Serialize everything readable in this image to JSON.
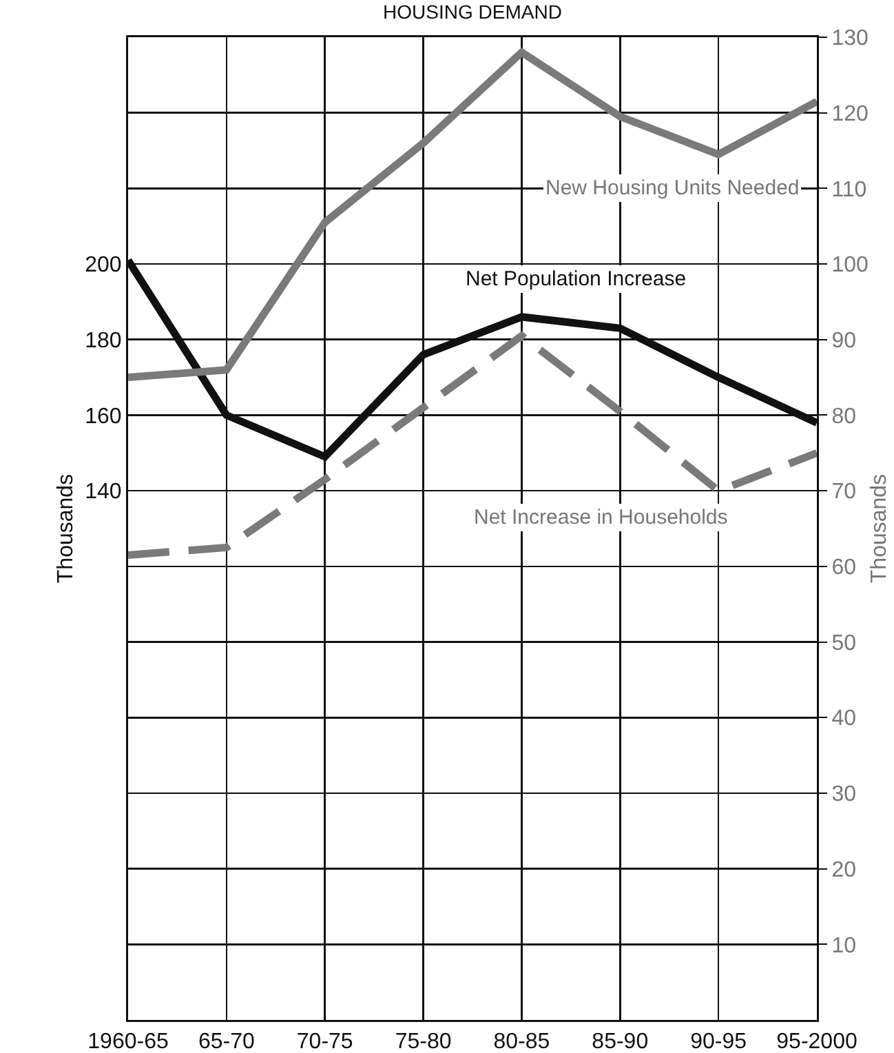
{
  "chart_data": {
    "type": "line",
    "title": "HOUSING DEMAND",
    "ylabel": "Thousands",
    "y2label": "Thousands",
    "categories": [
      "1960-65",
      "65-70",
      "70-75",
      "75-80",
      "80-85",
      "85-90",
      "90-95",
      "95-2000"
    ],
    "series": [
      {
        "name": "New Housing Units Needed",
        "color": "#7a7a7a",
        "axis": "y2",
        "line_style": "solid",
        "values": [
          85,
          86,
          105.5,
          116,
          128,
          119.5,
          114.5,
          121.5
        ]
      },
      {
        "name": "Net Population Increase",
        "color": "#111111",
        "line_style": "solid",
        "values": [
          201,
          160,
          149,
          176,
          186,
          183,
          170,
          158
        ]
      },
      {
        "name": "Net Increase in Households",
        "color": "#7a7a7a",
        "axis": "y2",
        "line_style": "dashed",
        "values": [
          61.5,
          62.5,
          71.5,
          81,
          90.5,
          80.5,
          70,
          75
        ]
      }
    ],
    "ylim": [
      0,
      260
    ],
    "yticks": [
      140,
      160,
      180,
      200
    ],
    "y2lim": [
      0,
      130
    ],
    "y2ticks": [
      10,
      20,
      30,
      40,
      50,
      60,
      70,
      80,
      90,
      100,
      110,
      120,
      130
    ],
    "grid": true,
    "legend": false,
    "marker": "none"
  }
}
